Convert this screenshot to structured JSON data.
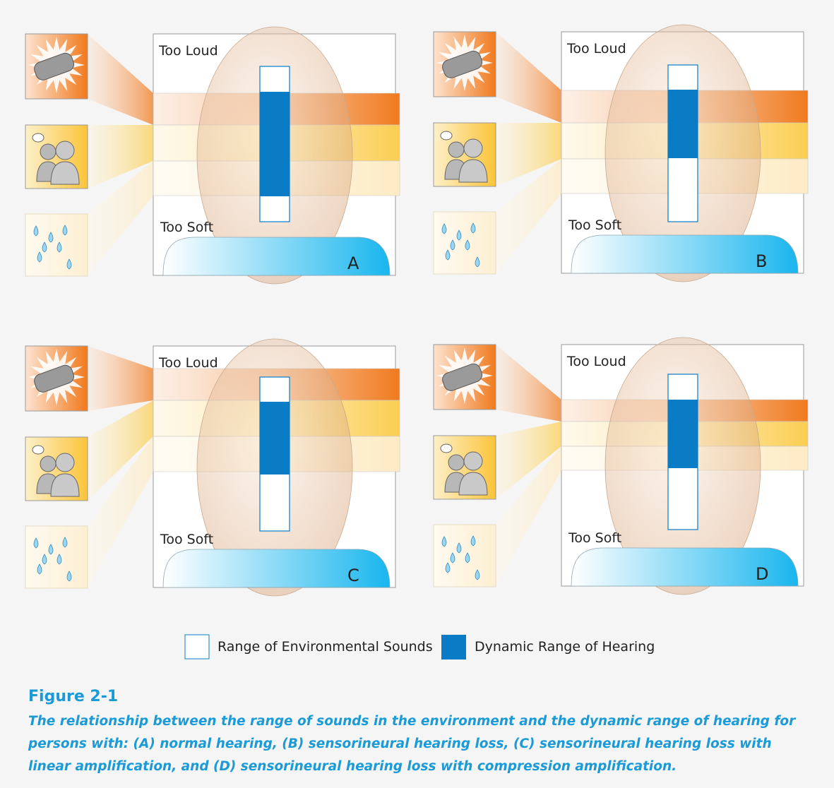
{
  "panels": [
    {
      "label": "A",
      "too_loud": "Too Loud",
      "too_soft": "Too Soft"
    },
    {
      "label": "B",
      "too_loud": "Too Loud",
      "too_soft": "Too Soft"
    },
    {
      "label": "C",
      "too_loud": "Too Loud",
      "too_soft": "Too Soft"
    },
    {
      "label": "D",
      "too_loud": "Too Loud",
      "too_soft": "Too Soft"
    }
  ],
  "legend": [
    {
      "label": "Range of Environmental Sounds"
    },
    {
      "label": "Dynamic Range of Hearing"
    }
  ],
  "figure": {
    "title": "Figure 2-1",
    "caption": [
      "The relationship between the range of sounds in the environment and the dynamic range of hearing for",
      "persons with: (A) normal hearing, (B) sensorineural hearing loss, (C) sensorineural hearing loss with",
      "linear amplification, and (D) sensorineural hearing loss with compression amplification."
    ]
  }
}
